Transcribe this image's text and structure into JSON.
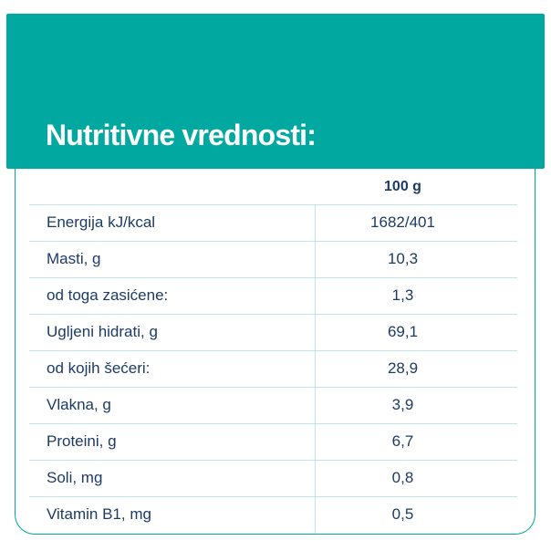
{
  "header": {
    "title": "Nutritivne vrednosti:"
  },
  "table": {
    "column_header": "100 g",
    "rows": [
      {
        "label": "Energija kJ/kcal",
        "value": "1682/401"
      },
      {
        "label": "Masti, g",
        "value": "10,3"
      },
      {
        "label": "od toga zasićene:",
        "value": "1,3"
      },
      {
        "label": "Ugljeni hidrati, g",
        "value": "69,1"
      },
      {
        "label": "od kojih šećeri:",
        "value": "28,9"
      },
      {
        "label": "Vlakna, g",
        "value": "3,9"
      },
      {
        "label": "Proteini, g",
        "value": "6,7"
      },
      {
        "label": "Soli, mg",
        "value": "0,8"
      },
      {
        "label": "Vitamin B1, mg",
        "value": "0,5"
      }
    ]
  },
  "colors": {
    "teal": "#00a8a0",
    "text_navy": "#1c3b66",
    "divider_line": "#bfe3e6",
    "background": "#ffffff"
  }
}
